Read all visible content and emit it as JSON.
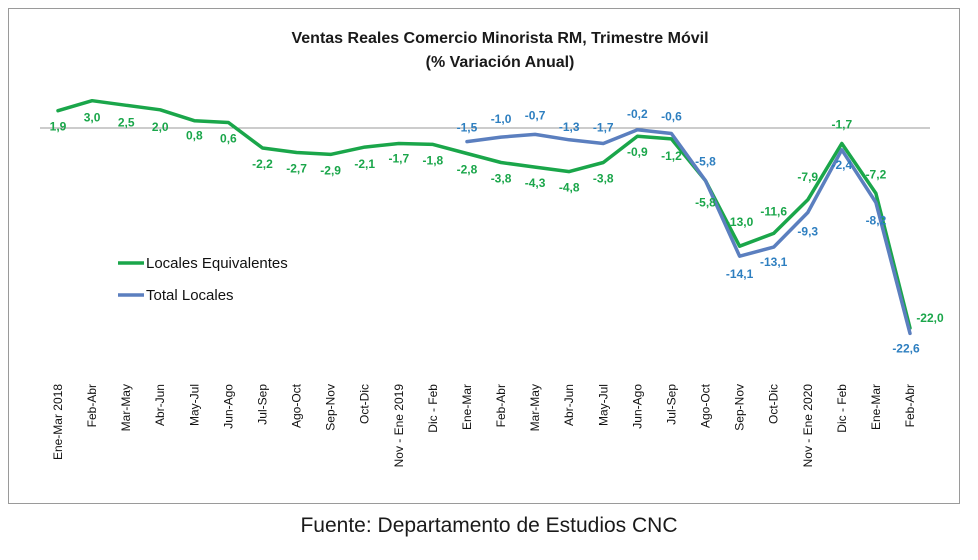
{
  "chart_data": {
    "type": "line",
    "title": "Ventas Reales Comercio Minorista RM, Trimestre Móvil",
    "subtitle": "(% Variación Anual)",
    "categories": [
      "Ene-Mar 2018",
      "Feb-Abr",
      "Mar-May",
      "Abr-Jun",
      "May-Jul",
      "Jun-Ago",
      "Jul-Sep",
      "Ago-Oct",
      "Sep-Nov",
      "Oct-Dic",
      "Nov - Ene 2019",
      "Dic - Feb",
      "Ene-Mar",
      "Feb-Abr",
      "Mar-May",
      "Abr-Jun",
      "May-Jul",
      "Jun-Ago",
      "Jul-Sep",
      "Ago-Oct",
      "Sep-Nov",
      "Oct-Dic",
      "Nov - Ene 2020",
      "Dic - Feb",
      "Ene-Mar",
      "Feb-Abr"
    ],
    "series": [
      {
        "name": "Locales Equivalentes",
        "color": "#1aa64a",
        "values": [
          1.9,
          3.0,
          2.5,
          2.0,
          0.8,
          0.6,
          -2.2,
          -2.7,
          -2.9,
          -2.1,
          -1.7,
          -1.8,
          -2.8,
          -3.8,
          -4.3,
          -4.8,
          -3.8,
          -0.9,
          -1.2,
          -5.8,
          -13.0,
          -11.6,
          -7.9,
          -1.7,
          -7.2,
          -22.0
        ],
        "labels": [
          "1,9",
          "3,0",
          "2,5",
          "2,0",
          "0,8",
          "0,6",
          "-2,2",
          "-2,7",
          "-2,9",
          "-2,1",
          "-1,7",
          "-1,8",
          "-2,8",
          "-3,8",
          "-4,3",
          "-4,8",
          "-3,8",
          "-0,9",
          "-1,2",
          "-5,8",
          "-13,0",
          "-11,6",
          "-7,9",
          "-1,7",
          "-7,2",
          "-22,0"
        ]
      },
      {
        "name": "Total Locales",
        "color": "#5b7fbf",
        "label_color": "#2e7fc0",
        "values": [
          null,
          null,
          null,
          null,
          null,
          null,
          null,
          null,
          null,
          null,
          null,
          null,
          -1.5,
          -1.0,
          -0.7,
          -1.3,
          -1.7,
          -0.2,
          -0.6,
          -5.8,
          -14.1,
          -13.1,
          -9.3,
          -2.4,
          -8.2,
          -22.6
        ],
        "labels": [
          null,
          null,
          null,
          null,
          null,
          null,
          null,
          null,
          null,
          null,
          null,
          null,
          "-1,5",
          "-1,0",
          "-0,7",
          "-1,3",
          "-1,7",
          "-0,2",
          "-0,6",
          "-5,8",
          "-14,1",
          "-13,1",
          "-9,3",
          "-2,4",
          "-8,2",
          "-22,6"
        ]
      }
    ],
    "ylim": [
      -24,
      4
    ],
    "grid": false,
    "legend_position": "center-left"
  },
  "source": "Fuente: Departamento de Estudios CNC"
}
